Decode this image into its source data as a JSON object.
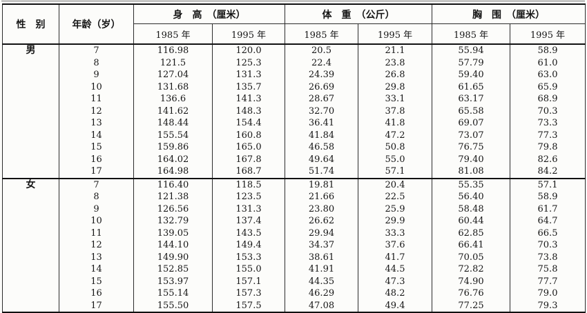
{
  "page": {
    "background_color": "#fcfcfa",
    "ink_color": "#151515"
  },
  "table": {
    "gender_header": "性　别",
    "age_header": "年龄（岁）",
    "groups": [
      {
        "label": "身　高　（厘米）"
      },
      {
        "label": "体　重　（公斤）"
      },
      {
        "label": "胸　围　（厘米）"
      }
    ],
    "year_headers": [
      "1985 年",
      "1995 年",
      "1985 年",
      "1995 年",
      "1985 年",
      "1995 年"
    ],
    "sections": [
      {
        "gender": "男",
        "rows": [
          [
            "7",
            "116.98",
            "120.0",
            "20.5",
            "21.1",
            "55.94",
            "58.9"
          ],
          [
            "8",
            "121.5",
            "125.3",
            "22.4",
            "23.8",
            "57.79",
            "61.0"
          ],
          [
            "9",
            "127.04",
            "131.3",
            "24.39",
            "26.8",
            "59.40",
            "63.0"
          ],
          [
            "10",
            "131.68",
            "135.7",
            "26.69",
            "29.8",
            "61.65",
            "65.9"
          ],
          [
            "11",
            "136.6",
            "141.3",
            "28.67",
            "33.1",
            "63.17",
            "68.9"
          ],
          [
            "12",
            "141.62",
            "148.3",
            "32.70",
            "37.8",
            "65.58",
            "70.3"
          ],
          [
            "13",
            "148.44",
            "154.4",
            "36.41",
            "41.8",
            "69.07",
            "73.3"
          ],
          [
            "14",
            "155.54",
            "160.8",
            "41.84",
            "47.2",
            "73.07",
            "77.3"
          ],
          [
            "15",
            "159.86",
            "165.0",
            "46.58",
            "50.8",
            "76.75",
            "79.8"
          ],
          [
            "16",
            "164.02",
            "167.8",
            "49.64",
            "55.0",
            "79.40",
            "82.6"
          ],
          [
            "17",
            "164.98",
            "168.7",
            "51.74",
            "57.1",
            "81.08",
            "84.2"
          ]
        ]
      },
      {
        "gender": "女",
        "rows": [
          [
            "7",
            "116.40",
            "118.5",
            "19.81",
            "20.4",
            "55.35",
            "57.1"
          ],
          [
            "8",
            "121.38",
            "123.5",
            "21.66",
            "22.5",
            "56.40",
            "58.9"
          ],
          [
            "9",
            "126.56",
            "131.3",
            "23.80",
            "25.9",
            "58.48",
            "61.7"
          ],
          [
            "10",
            "132.79",
            "137.4",
            "26.62",
            "29.9",
            "60.44",
            "64.7"
          ],
          [
            "11",
            "139.05",
            "143.5",
            "29.94",
            "33.3",
            "62.85",
            "66.5"
          ],
          [
            "12",
            "144.10",
            "149.4",
            "34.37",
            "37.6",
            "66.41",
            "70.3"
          ],
          [
            "13",
            "149.90",
            "153.3",
            "38.61",
            "41.7",
            "70.05",
            "73.8"
          ],
          [
            "14",
            "152.85",
            "155.0",
            "41.91",
            "44.5",
            "72.82",
            "75.8"
          ],
          [
            "15",
            "153.97",
            "157.1",
            "44.35",
            "47.3",
            "74.90",
            "77.7"
          ],
          [
            "16",
            "155.14",
            "157.3",
            "46.29",
            "48.2",
            "76.76",
            "79.0"
          ],
          [
            "17",
            "155.50",
            "157.5",
            "47.08",
            "49.4",
            "77.25",
            "79.3"
          ]
        ]
      }
    ]
  }
}
